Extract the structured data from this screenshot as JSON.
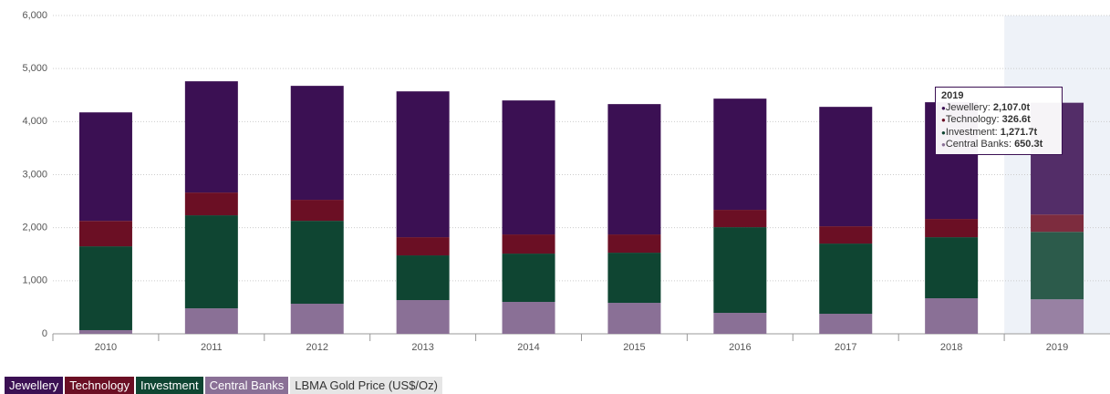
{
  "chart_data": {
    "type": "stacked-bar",
    "categories": [
      "2010",
      "2011",
      "2012",
      "2013",
      "2014",
      "2015",
      "2016",
      "2017",
      "2018",
      "2019"
    ],
    "series": [
      {
        "name": "Central Banks",
        "color": "#8a7096",
        "values": [
          69,
          480,
          567,
          636,
          601,
          584,
          395,
          378,
          670,
          650.3
        ]
      },
      {
        "name": "Investment",
        "color": "#0f4532",
        "values": [
          1580,
          1754,
          1563,
          842,
          911,
          945,
          1615,
          1323,
          1151,
          1271.7
        ]
      },
      {
        "name": "Technology",
        "color": "#6b0f24",
        "values": [
          480,
          429,
          396,
          343,
          361,
          344,
          327,
          326,
          344,
          326.6
        ]
      },
      {
        "name": "Jewellery",
        "color": "#3b1053",
        "values": [
          2045,
          2097,
          2148,
          2749,
          2526,
          2457,
          2096,
          2251,
          2200,
          2107.0
        ]
      },
      {
        "name": "LBMA Gold Price (US$/Oz)",
        "color": "#e6e6e6",
        "values": [
          null,
          null,
          null,
          null,
          null,
          null,
          null,
          null,
          null,
          null
        ],
        "visible": false
      }
    ],
    "ylim": [
      0,
      6000
    ],
    "yticks": [
      0,
      {
        "value": 1000,
        "label": "1,000"
      },
      {
        "value": 2000,
        "label": "2,000"
      },
      {
        "value": 3000,
        "label": "3,000"
      },
      {
        "value": 4000,
        "label": "4,000"
      },
      {
        "value": 5000,
        "label": "5,000"
      },
      {
        "value": 6000,
        "label": "6,000"
      }
    ],
    "grid": true,
    "legend_order": [
      3,
      2,
      1,
      0,
      4
    ],
    "tooltip": {
      "title": "2019",
      "items": [
        {
          "name": "Jewellery",
          "label": "2,107.0t"
        },
        {
          "name": "Technology",
          "label": "326.6t"
        },
        {
          "name": "Investment",
          "label": "1,271.7t"
        },
        {
          "name": "Central Banks",
          "label": "650.3t"
        }
      ]
    }
  }
}
